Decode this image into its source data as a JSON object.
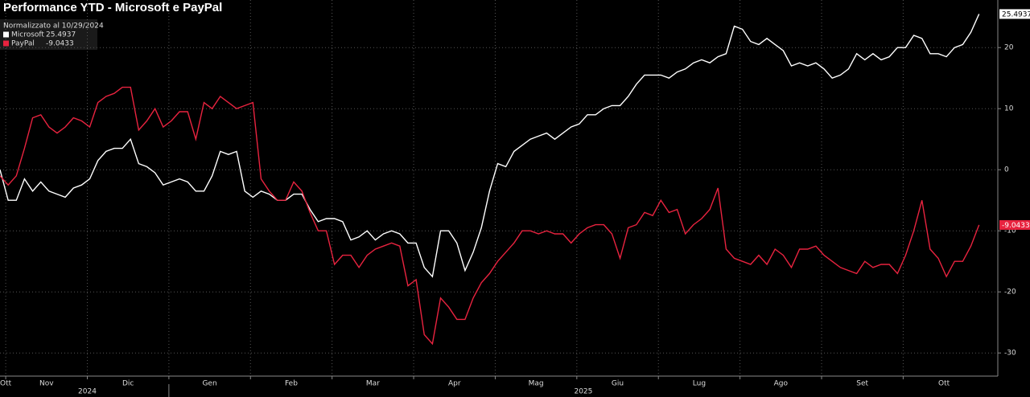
{
  "chart_data": {
    "type": "line",
    "title": "Performance YTD - Microsoft e PayPal",
    "legend_note": "Normalizzato al 10/29/2024",
    "x": [
      0.93,
      1.03,
      1.13,
      1.23,
      1.33,
      1.43,
      1.53,
      1.63,
      1.73,
      1.83,
      1.93,
      2.03,
      2.13,
      2.23,
      2.33,
      2.43,
      2.53,
      2.63,
      2.73,
      2.83,
      2.93,
      3.03,
      3.13,
      3.23,
      3.33,
      3.43,
      3.53,
      3.63,
      3.73,
      3.83,
      3.93,
      4.03,
      4.13,
      4.23,
      4.33,
      4.43,
      4.53,
      4.63,
      4.73,
      4.83,
      4.93,
      5.03,
      5.13,
      5.23,
      5.33,
      5.43,
      5.53,
      5.63,
      5.73,
      5.83,
      5.93,
      6.03,
      6.13,
      6.23,
      6.33,
      6.43,
      6.53,
      6.63,
      6.73,
      6.83,
      6.93,
      7.03,
      7.13,
      7.23,
      7.33,
      7.43,
      7.53,
      7.63,
      7.73,
      7.83,
      7.93,
      8.03,
      8.13,
      8.23,
      8.33,
      8.43,
      8.53,
      8.63,
      8.73,
      8.83,
      8.93,
      9.03,
      9.13,
      9.23,
      9.33,
      9.43,
      9.53,
      9.63,
      9.73,
      9.83,
      9.93,
      10.03,
      10.13,
      10.23,
      10.33,
      10.43,
      10.53,
      10.63,
      10.73,
      10.83,
      10.93,
      11.03,
      11.13,
      11.23,
      11.33,
      11.43,
      11.53,
      11.63,
      11.73,
      11.83,
      11.93,
      12.03,
      12.13,
      12.23,
      12.33,
      12.43,
      12.53,
      12.63,
      12.73,
      12.83,
      12.93
    ],
    "xlim": [
      0.93,
      13.16
    ],
    "xticks": [
      1,
      2,
      3,
      4,
      5,
      6,
      7,
      8,
      9,
      10,
      11,
      12
    ],
    "month_labels": [
      {
        "value": 1.0,
        "label": "Ott"
      },
      {
        "value": 1.5,
        "label": "Nov"
      },
      {
        "value": 2.5,
        "label": "Dic"
      },
      {
        "value": 3.5,
        "label": "Gen"
      },
      {
        "value": 4.5,
        "label": "Feb"
      },
      {
        "value": 5.5,
        "label": "Mar"
      },
      {
        "value": 6.5,
        "label": "Apr"
      },
      {
        "value": 7.5,
        "label": "Mag"
      },
      {
        "value": 8.5,
        "label": "Giu"
      },
      {
        "value": 9.5,
        "label": "Lug"
      },
      {
        "value": 10.5,
        "label": "Ago"
      },
      {
        "value": 11.5,
        "label": "Set"
      },
      {
        "value": 12.5,
        "label": "Ott"
      }
    ],
    "year_labels": [
      {
        "value": 2.0,
        "label": "2024"
      },
      {
        "value": 8.08,
        "label": "2025"
      }
    ],
    "ylim": [
      -33,
      27
    ],
    "yticks": [
      20,
      10,
      0,
      -10,
      -20,
      -30
    ],
    "grid": true,
    "series": [
      {
        "name": "Microsoft",
        "color": "#ffffff",
        "values": [
          0,
          -5,
          -5,
          -1.5,
          -3.5,
          -2,
          -3.5,
          -4,
          -4.5,
          -3,
          -2.5,
          -1.5,
          1.5,
          3,
          3.5,
          3.5,
          5,
          1,
          0.5,
          -0.5,
          -2.5,
          -2,
          -1.5,
          -2,
          -3.5,
          -3.5,
          -1,
          3,
          2.5,
          3,
          -3.5,
          -4.5,
          -3.5,
          -4,
          -5,
          -5,
          -4,
          -4,
          -6.5,
          -8.5,
          -8,
          -8,
          -8.5,
          -11.5,
          -11,
          -10,
          -11.5,
          -10.5,
          -10,
          -10.5,
          -12,
          -12,
          -16,
          -17.5,
          -10,
          -10,
          -12,
          -16.5,
          -13.5,
          -9.5,
          -3.5,
          1,
          0.5,
          3,
          4,
          5,
          5.5,
          6,
          5,
          6,
          7,
          7.5,
          9,
          9,
          10,
          10.5,
          10.5,
          12,
          14,
          15.5,
          15.5,
          15.5,
          15,
          16,
          16.5,
          17.5,
          18,
          17.5,
          18.5,
          19,
          23.5,
          23,
          21,
          20.5,
          21.5,
          20.5,
          19.5,
          17,
          17.5,
          17,
          17.5,
          16.5,
          15,
          15.5,
          16.5,
          19,
          18,
          19,
          18,
          18.5,
          20,
          20,
          22,
          21.5,
          19,
          19,
          18.5,
          20,
          20.5,
          22.5,
          25.4937
        ]
      },
      {
        "name": "PayPal",
        "color": "#e8233f",
        "values": [
          -1,
          -2.5,
          -1,
          3.5,
          8.5,
          9,
          7,
          6,
          7,
          8.5,
          8,
          7,
          11,
          12,
          12.5,
          13.5,
          13.5,
          6.5,
          8,
          10,
          7,
          8,
          9.5,
          9.5,
          5,
          11,
          10,
          12,
          11,
          10,
          10.5,
          11,
          -1.5,
          -3.5,
          -5,
          -5,
          -2,
          -3.5,
          -7,
          -10,
          -10,
          -15.5,
          -14,
          -14,
          -16,
          -14,
          -13,
          -12.5,
          -12,
          -12.5,
          -19,
          -18,
          -27,
          -28.5,
          -21,
          -22.5,
          -24.5,
          -24.5,
          -21,
          -18.5,
          -17,
          -15,
          -13.5,
          -12,
          -10,
          -10,
          -10.5,
          -10,
          -10.5,
          -10.5,
          -12,
          -10.5,
          -9.5,
          -9,
          -9,
          -10.5,
          -14.5,
          -9.5,
          -9,
          -7,
          -7.5,
          -5,
          -7,
          -6.5,
          -10.5,
          -9,
          -8,
          -6.5,
          -3,
          -13,
          -14.5,
          -15,
          -15.5,
          -14,
          -15.5,
          -13,
          -14,
          -16,
          -13,
          -13,
          -12.5,
          -14,
          -15,
          -16,
          -16.5,
          -17,
          -15,
          -16,
          -15.5,
          -15.5,
          -17,
          -14,
          -10,
          -5,
          -13,
          -14.5,
          -17.5,
          -15,
          -15,
          -12.5,
          -9.0433
        ]
      }
    ]
  }
}
